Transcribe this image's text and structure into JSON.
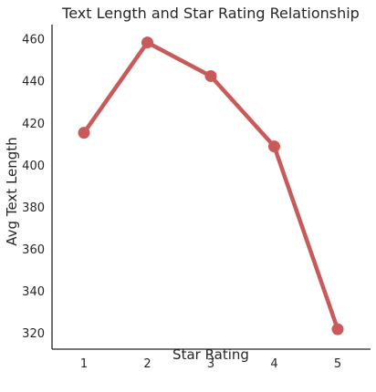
{
  "chart_data": {
    "type": "line",
    "title": "Text Length and Star Rating Relationship",
    "xlabel": "Star Rating",
    "ylabel": "Avg Text Length",
    "categories": [
      "1",
      "2",
      "3",
      "4",
      "5"
    ],
    "series": [
      {
        "values": [
          415.5,
          458.5,
          442.5,
          409.0,
          322.0
        ]
      }
    ],
    "ylim": [
      312.5,
      467
    ],
    "yticks": [
      320,
      340,
      360,
      380,
      400,
      420,
      440,
      460
    ],
    "grid": false,
    "colors": {
      "line": "#c85a5a",
      "axis": "#262626"
    }
  }
}
